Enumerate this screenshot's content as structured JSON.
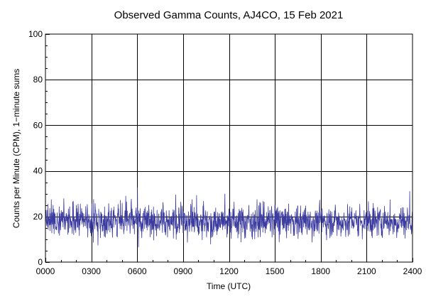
{
  "chart_data": {
    "type": "line",
    "title": "Observed Gamma Counts, AJ4CO, 15 Feb 2021",
    "xlabel": "Time (UTC)",
    "ylabel": "Counts per Minute (CPM), 1−minute sums",
    "x_range_minutes": [
      0,
      1440
    ],
    "x_tick_labels": [
      "0000",
      "0300",
      "0600",
      "0900",
      "1200",
      "1500",
      "1800",
      "2100",
      "2400"
    ],
    "x_tick_minutes": [
      0,
      180,
      360,
      540,
      720,
      900,
      1080,
      1260,
      1440
    ],
    "ylim": [
      0,
      100
    ],
    "y_tick_values": [
      0,
      20,
      40,
      60,
      80,
      100
    ],
    "grid": true,
    "line_color": "#3b3ba0",
    "series": [
      {
        "sampling": "1 point per minute, 1440 points",
        "mean_cpm": 18,
        "typical_range_cpm": [
          9,
          28
        ],
        "min_cpm": 5,
        "max_cpm": 33
      }
    ]
  }
}
